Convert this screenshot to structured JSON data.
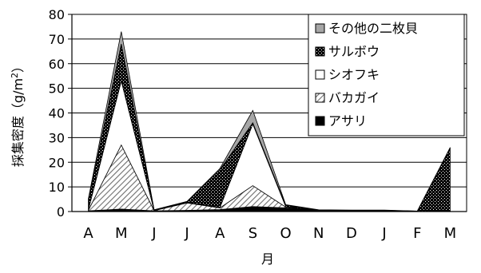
{
  "chart_data": {
    "type": "area",
    "stacked": true,
    "title": "",
    "xlabel": "月",
    "ylabel": "採集密度（g/m²）",
    "ylabel_parts": {
      "main": "採集密度（g/m",
      "sup": "2",
      "close": "）"
    },
    "ylim": [
      0,
      80
    ],
    "yticks": [
      0,
      10,
      20,
      30,
      40,
      50,
      60,
      70,
      80
    ],
    "grid": "horizontal",
    "legend_position": "top-right",
    "categories": [
      "A",
      "M",
      "J",
      "J",
      "A",
      "S",
      "O",
      "N",
      "D",
      "J",
      "F",
      "M"
    ],
    "series": [
      {
        "name": "アサリ",
        "pattern": "black",
        "values": [
          0.3,
          1.0,
          0.3,
          0.5,
          0.8,
          2.0,
          1.5,
          0.2,
          0.1,
          0.1,
          0.1,
          0.2
        ]
      },
      {
        "name": "バカガイ",
        "pattern": "hatch",
        "values": [
          0.2,
          26.0,
          0.1,
          3.0,
          0.7,
          8.5,
          0.3,
          0.1,
          0.1,
          0.1,
          0.0,
          0.1
        ]
      },
      {
        "name": "シオフキ",
        "pattern": "white",
        "values": [
          0.2,
          26.0,
          0.1,
          0.2,
          0.2,
          25.0,
          0.2,
          0.1,
          0.1,
          0.1,
          0.0,
          0.0
        ]
      },
      {
        "name": "サルボウ",
        "pattern": "dots",
        "values": [
          4.0,
          15.0,
          0.1,
          0.3,
          15.3,
          0.5,
          0.5,
          0.2,
          0.2,
          0.2,
          0.1,
          25.5
        ]
      },
      {
        "name": "その他の二枚貝",
        "pattern": "gray",
        "values": [
          0.5,
          5.0,
          0.1,
          0.1,
          0.5,
          5.0,
          0.3,
          0.1,
          0.1,
          0.1,
          0.0,
          0.2
        ]
      }
    ],
    "legend_order": [
      "その他の二枚貝",
      "サルボウ",
      "シオフキ",
      "バカガイ",
      "アサリ"
    ],
    "colors": {
      "black": "#000000",
      "gray": "#a6a6a6",
      "white": "#ffffff",
      "hatch": "#808080",
      "dots": "#000000"
    }
  }
}
